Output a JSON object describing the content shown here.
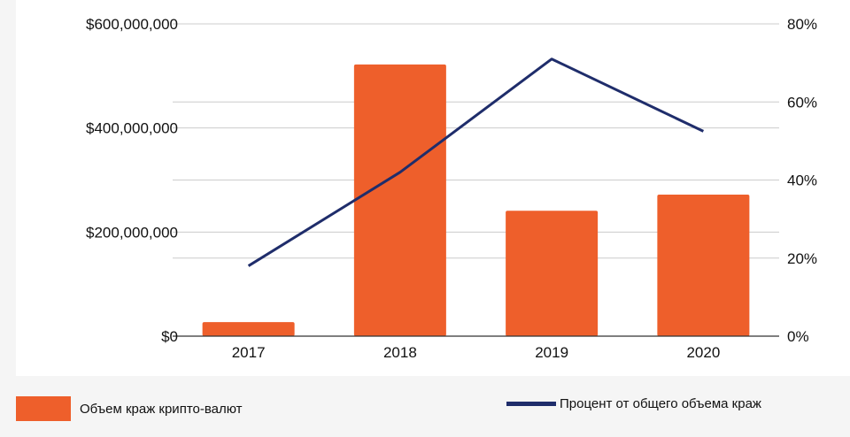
{
  "chart_data": {
    "type": "bar",
    "categories": [
      "2017",
      "2018",
      "2019",
      "2020"
    ],
    "series": [
      {
        "name": "Объем краж крипто-валют",
        "type": "bar",
        "axis": "left",
        "color": "#ee5f2b",
        "values": [
          27000000,
          522000000,
          241000000,
          272000000
        ]
      },
      {
        "name": "Процент от общего объема краж",
        "type": "line",
        "axis": "right",
        "color": "#1f2d6b",
        "values": [
          18,
          42,
          71,
          52.5
        ]
      }
    ],
    "y_left": {
      "ylim": [
        0,
        600000000
      ],
      "ticks": [
        0,
        200000000,
        400000000,
        600000000
      ],
      "tick_labels": [
        "$0",
        "$200,000,000",
        "$400,000,000",
        "$600,000,000"
      ]
    },
    "y_right": {
      "ylim": [
        0,
        80
      ],
      "ticks": [
        0,
        20,
        40,
        60,
        80
      ],
      "tick_labels": [
        "0%",
        "20%",
        "40%",
        "60%",
        "80%"
      ]
    },
    "grid": true,
    "legend_position": "bottom"
  },
  "legend": {
    "bar_label": "Объем краж крипто-валют",
    "line_label": "Процент от общего объема краж"
  }
}
